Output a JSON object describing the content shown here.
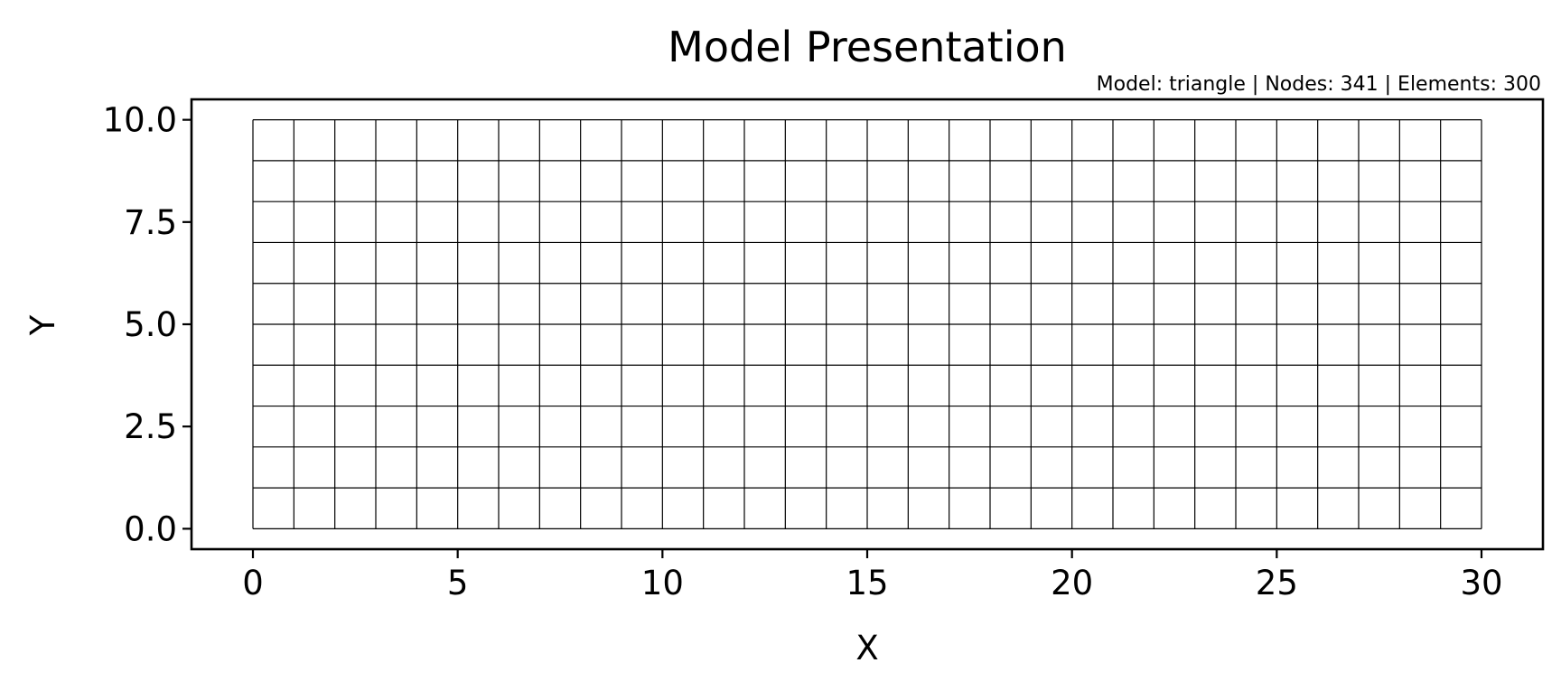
{
  "chart_data": {
    "type": "mesh",
    "title": "Model Presentation",
    "info": {
      "model_label": "Model: triangle",
      "nodes_label": "Nodes: 341",
      "elements_label": "Elements: 300",
      "separator": "|"
    },
    "xlabel": "X",
    "ylabel": "Y",
    "xlim": [
      -1.5,
      31.5
    ],
    "ylim": [
      -0.5,
      10.5
    ],
    "x_ticks": [
      0,
      5,
      10,
      15,
      20,
      25,
      30
    ],
    "x_tick_labels": [
      "0",
      "5",
      "10",
      "15",
      "20",
      "25",
      "30"
    ],
    "y_ticks": [
      0,
      2.5,
      5,
      7.5,
      10
    ],
    "y_tick_labels": [
      "0.0",
      "2.5",
      "5.0",
      "7.5",
      "10.0"
    ],
    "mesh": {
      "x_min": 0,
      "x_max": 30,
      "nx": 30,
      "y_min": 0,
      "y_max": 10,
      "ny": 10
    },
    "grid": false,
    "line_color": "#000000"
  }
}
